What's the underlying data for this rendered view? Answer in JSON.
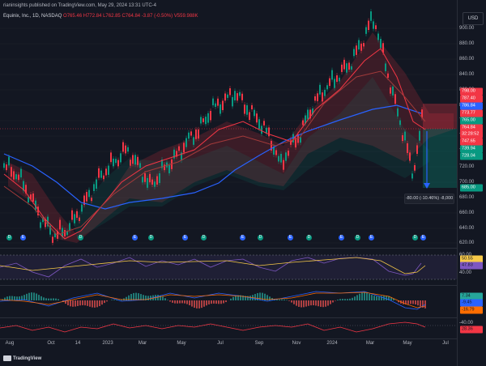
{
  "header": {
    "publisher": "rianinsights published on TradingView.com, May 29, 2024 13:31 UTC-4",
    "symbol": "Equinix, Inc., 1D, NASDAQ",
    "ohlc": "O765.46 H772.84 L762.85 C764.84 -3.87 (-0.50%) V559.988K",
    "currency": "USD"
  },
  "price_axis": {
    "ticks": [
      "900.00",
      "880.00",
      "860.00",
      "840.00",
      "820.00",
      "800.00",
      "780.00",
      "760.00",
      "740.00",
      "720.00",
      "700.00",
      "680.00",
      "660.00",
      "640.00",
      "620.00"
    ],
    "labels": [
      {
        "text": "798.00",
        "color": "#f23645"
      },
      {
        "text": "787.40",
        "color": "#f23645"
      },
      {
        "text": "786.84",
        "color": "#2962ff"
      },
      {
        "text": "773.77",
        "color": "#f23645"
      },
      {
        "text": "765.00",
        "color": "#089981"
      },
      {
        "text": "764.84",
        "color": "#f23645"
      },
      {
        "text": "32:28:52",
        "color": "#f23645"
      },
      {
        "text": "747.65",
        "color": "#f23645"
      },
      {
        "text": "739.94",
        "color": "#089981"
      },
      {
        "text": "728.04",
        "color": "#089981"
      },
      {
        "text": "685.00",
        "color": "#089981"
      }
    ]
  },
  "measure_label": "-80.00 (-10.46%) -8,000",
  "rsi": {
    "ticks": [
      "60.00",
      "40.00"
    ],
    "labels": [
      {
        "text": "50.55",
        "color": "#f7c948"
      },
      {
        "text": "47.83",
        "color": "#7e57c2"
      }
    ]
  },
  "macd": {
    "labels": [
      {
        "text": "7.34",
        "color": "#26a69a"
      },
      {
        "text": "-9.45",
        "color": "#2962ff"
      },
      {
        "text": "-16.79",
        "color": "#ff6d00"
      }
    ]
  },
  "osc": {
    "ticks": [
      "-40.00"
    ],
    "labels": [
      {
        "text": "28.36",
        "color": "#f23645"
      }
    ]
  },
  "time_axis": [
    "Aug",
    "Oct",
    "14",
    "2023",
    "Mar",
    "May",
    "Jul",
    "Sep",
    "Nov",
    "2024",
    "Mar",
    "May",
    "Jul"
  ],
  "brand": "TradingView",
  "events": [
    "D",
    "E",
    "D",
    "E",
    "D",
    "E",
    "D",
    "E",
    "D",
    "E",
    "D",
    "E",
    "D",
    "E",
    "D",
    "E",
    "D",
    "E"
  ],
  "colors": {
    "up": "#089981",
    "down": "#f23645",
    "bg": "#131722",
    "ma_blue": "#2962ff",
    "ma_red": "#f23645"
  }
}
